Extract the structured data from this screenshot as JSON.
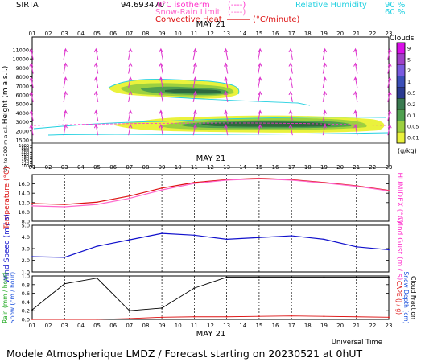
{
  "header": {
    "site": "SIRTA",
    "coords": "94.693470",
    "legend_isotherm": "0°C isotherm",
    "legend_isotherm_key": "(----)",
    "legend_snowrain": "Snow-Rain Limit",
    "legend_snowrain_key": "(----)",
    "legend_convective": "Convective Heat",
    "legend_convective_unit": "(°C/minute)",
    "legend_rh": "Relative Humidity",
    "rh_90": "90 %",
    "rh_60": "60 %"
  },
  "date_label": "MAY 21",
  "hours": [
    "01",
    "02",
    "03",
    "04",
    "05",
    "06",
    "07",
    "08",
    "09",
    "10",
    "11",
    "12",
    "13",
    "14",
    "15",
    "16",
    "17",
    "18",
    "19",
    "20",
    "21",
    "22",
    "23"
  ],
  "clouds_colorbar": {
    "title": "Clouds",
    "unit": "(g/kg)",
    "labels": [
      "9",
      "5",
      "2",
      "1",
      "0.5",
      "0.2",
      "0.1",
      "0.05",
      "0.01"
    ],
    "colors": [
      "#d90fe8",
      "#a040c8",
      "#7a5ae0",
      "#3b4fb8",
      "#2a3a90",
      "#3a7a50",
      "#4fa04f",
      "#9cd040",
      "#eaf23c"
    ]
  },
  "chart_data": [
    {
      "type": "heatmap",
      "name": "clouds",
      "ylabel": "Height (m a.s.l.)",
      "ylabel_low": "Up to 200 m a.s.l.",
      "y_ticks_upper": [
        11000,
        10000,
        9000,
        8000,
        7000,
        6000,
        5000,
        4000,
        3000,
        2000,
        1500
      ],
      "y_ticks_lower": [
        1000,
        800,
        600,
        400,
        200,
        180,
        160,
        140,
        120,
        100
      ],
      "wind_arrows_heights": [
        10500,
        9000,
        7500,
        6000,
        4000,
        2500
      ],
      "wind_arrows_hours": [
        "01",
        "03",
        "05",
        "07",
        "09",
        "11",
        "13",
        "15",
        "17",
        "19",
        "21",
        "23"
      ]
    },
    {
      "type": "line",
      "name": "temperature",
      "ylabel": "Temperature (°C)",
      "ylabel_right": "HUMIDEX (°C)",
      "ylim": [
        8,
        18
      ],
      "y_ticks": [
        8.0,
        10.0,
        12.0,
        14.0,
        16.0
      ],
      "x": [
        "01",
        "03",
        "05",
        "07",
        "09",
        "11",
        "13",
        "15",
        "17",
        "19",
        "21",
        "23"
      ],
      "series": [
        {
          "color": "#dd1111",
          "values": [
            11.8,
            11.6,
            12.1,
            13.4,
            15.1,
            16.3,
            16.9,
            17.2,
            16.9,
            16.3,
            15.6,
            14.6
          ]
        },
        {
          "color": "#ff66cc",
          "values": [
            11.3,
            11.1,
            11.6,
            12.9,
            14.7,
            16.1,
            16.8,
            17.1,
            16.8,
            16.2,
            15.5,
            14.5
          ]
        }
      ]
    },
    {
      "type": "line",
      "name": "wind",
      "ylabel": "Wind Speed (m / s)",
      "ylabel_right": "Wind Gust (m / s)",
      "ylim": [
        1.0,
        5.0
      ],
      "y_ticks": [
        1.0,
        2.0,
        3.0,
        4.0,
        5.0
      ],
      "x": [
        "01",
        "03",
        "05",
        "07",
        "09",
        "11",
        "13",
        "15",
        "17",
        "19",
        "21",
        "23"
      ],
      "series": [
        {
          "color": "#1111cc",
          "values": [
            2.3,
            2.25,
            3.2,
            3.75,
            4.3,
            4.15,
            3.8,
            3.95,
            4.1,
            3.8,
            3.15,
            2.9
          ]
        }
      ]
    },
    {
      "type": "line",
      "name": "rain",
      "ylabel": "Rain (mm / hour)",
      "ylabel2": "Snow (cm / hour)",
      "ylabel_right": "CAPE (J / g)",
      "ylabel_right2": "Snow Depth (cm)",
      "ylabel_right3": "Cloud Fraction",
      "xlabel": "Universal Time",
      "ylim": [
        0.0,
        1.0
      ],
      "y_ticks": [
        0.0,
        0.2,
        0.4,
        0.6,
        0.8,
        1.0
      ],
      "x": [
        "01",
        "03",
        "05",
        "07",
        "09",
        "11",
        "13",
        "15",
        "17",
        "19",
        "21",
        "23"
      ],
      "series": [
        {
          "color": "#000000",
          "values": [
            0.22,
            0.82,
            0.95,
            0.2,
            0.26,
            0.72,
            0.97,
            0.97,
            0.97,
            0.97,
            0.97,
            0.97
          ]
        },
        {
          "color": "#dd1111",
          "values": [
            0.0,
            0.0,
            0.0,
            0.02,
            0.05,
            0.06,
            0.06,
            0.07,
            0.08,
            0.07,
            0.06,
            0.05
          ]
        }
      ]
    }
  ],
  "footer": "Modele Atmospherique LMDZ / Forecast starting on 20230521 at 0hUT"
}
